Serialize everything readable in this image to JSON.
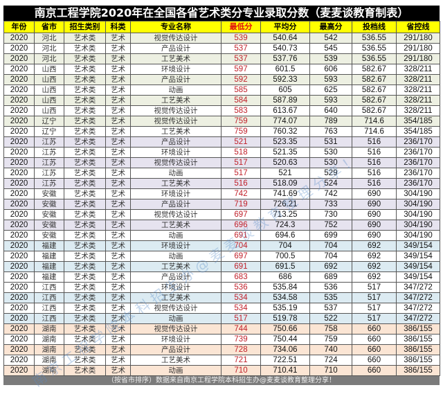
{
  "title": "南京工程学院2020年在全国各省艺术类分专业录取分数（麦麦谈教育制表）",
  "columns": [
    "年份",
    "省市",
    "招生类别",
    "科类",
    "专业名称",
    "最低分",
    "平均分",
    "最高分",
    "投档线",
    "省控线"
  ],
  "colors": {
    "title_bg": "#000000",
    "header_bg": "#ffff00",
    "min_score": "#c0202a",
    "footer_bg": "#7b7b7b"
  },
  "rows": [
    {
      "year": "2020",
      "province": "河北",
      "category": "艺术类",
      "subject": "艺术",
      "major": "视觉传达设计",
      "min": "539",
      "avg": "540.64",
      "max": "542",
      "cutoff": "536.55",
      "control": "291/180",
      "group": "hebei",
      "alt": true
    },
    {
      "year": "2020",
      "province": "河北",
      "category": "艺术类",
      "subject": "艺术",
      "major": "产品设计",
      "min": "537",
      "avg": "540.73",
      "max": "545",
      "cutoff": "536.55",
      "control": "291/180",
      "group": "hebei",
      "alt": false
    },
    {
      "year": "2020",
      "province": "河北",
      "category": "艺术类",
      "subject": "艺术",
      "major": "工艺美术",
      "min": "537",
      "avg": "537.76",
      "max": "539",
      "cutoff": "536.55",
      "control": "291/180",
      "group": "hebei",
      "alt": true
    },
    {
      "year": "2020",
      "province": "山西",
      "category": "艺术类",
      "subject": "艺术",
      "major": "环境设计",
      "min": "597",
      "avg": "601.5",
      "max": "606",
      "cutoff": "582.67",
      "control": "328/211",
      "group": "shanxi",
      "alt": false
    },
    {
      "year": "2020",
      "province": "山西",
      "category": "艺术类",
      "subject": "艺术",
      "major": "产品设计",
      "min": "592",
      "avg": "592.33",
      "max": "593",
      "cutoff": "582.67",
      "control": "328/211",
      "group": "shanxi",
      "alt": true
    },
    {
      "year": "2020",
      "province": "山西",
      "category": "艺术类",
      "subject": "艺术",
      "major": "动画",
      "min": "585",
      "avg": "605",
      "max": "625",
      "cutoff": "582.67",
      "control": "328/211",
      "group": "shanxi",
      "alt": false
    },
    {
      "year": "2020",
      "province": "山西",
      "category": "艺术类",
      "subject": "艺术",
      "major": "工艺美术",
      "min": "584",
      "avg": "587.89",
      "max": "593",
      "cutoff": "582.67",
      "control": "328/211",
      "group": "shanxi",
      "alt": true
    },
    {
      "year": "2020",
      "province": "山西",
      "category": "艺术类",
      "subject": "艺术",
      "major": "视觉传达设计",
      "min": "583",
      "avg": "613.67",
      "max": "640",
      "cutoff": "582.67",
      "control": "328/211",
      "group": "shanxi",
      "alt": false
    },
    {
      "year": "2020",
      "province": "辽宁",
      "category": "艺术类",
      "subject": "艺术",
      "major": "视觉传达设计",
      "min": "759",
      "avg": "774.07",
      "max": "789",
      "cutoff": "714.6",
      "control": "354/185",
      "group": "liaoning",
      "alt": true
    },
    {
      "year": "2020",
      "province": "辽宁",
      "category": "艺术类",
      "subject": "艺术",
      "major": "工艺美术",
      "min": "759",
      "avg": "760.32",
      "max": "763",
      "cutoff": "714.6",
      "control": "354/185",
      "group": "liaoning",
      "alt": false
    },
    {
      "year": "2020",
      "province": "江苏",
      "category": "艺术类",
      "subject": "艺术",
      "major": "产品设计",
      "min": "521",
      "avg": "523.35",
      "max": "531",
      "cutoff": "516",
      "control": "236/170",
      "group": "jiangsu",
      "alt": true
    },
    {
      "year": "2020",
      "province": "江苏",
      "category": "艺术类",
      "subject": "艺术",
      "major": "环境设计",
      "min": "518",
      "avg": "521.35",
      "max": "530",
      "cutoff": "516",
      "control": "236/170",
      "group": "jiangsu",
      "alt": false
    },
    {
      "year": "2020",
      "province": "江苏",
      "category": "艺术类",
      "subject": "艺术",
      "major": "视觉传达设计",
      "min": "517",
      "avg": "520.63",
      "max": "530",
      "cutoff": "516",
      "control": "236/170",
      "group": "jiangsu",
      "alt": true
    },
    {
      "year": "2020",
      "province": "江苏",
      "category": "艺术类",
      "subject": "艺术",
      "major": "动画",
      "min": "517",
      "avg": "521",
      "max": "529",
      "cutoff": "516",
      "control": "236/170",
      "group": "jiangsu",
      "alt": false
    },
    {
      "year": "2020",
      "province": "江苏",
      "category": "艺术类",
      "subject": "艺术",
      "major": "工艺美术",
      "min": "516",
      "avg": "518.09",
      "max": "524",
      "cutoff": "516",
      "control": "236/170",
      "group": "jiangsu",
      "alt": true
    },
    {
      "year": "2020",
      "province": "安徽",
      "category": "艺术类",
      "subject": "艺术",
      "major": "环境设计",
      "min": "742",
      "avg": "741.69",
      "max": "742",
      "cutoff": "690",
      "control": "304/190",
      "group": "anhui",
      "alt": false
    },
    {
      "year": "2020",
      "province": "安徽",
      "category": "艺术类",
      "subject": "艺术",
      "major": "产品设计",
      "min": "719",
      "avg": "726.21",
      "max": "733",
      "cutoff": "690",
      "control": "304/190",
      "group": "anhui",
      "alt": true
    },
    {
      "year": "2020",
      "province": "安徽",
      "category": "艺术类",
      "subject": "艺术",
      "major": "视觉传达设计",
      "min": "697",
      "avg": "713.25",
      "max": "730",
      "cutoff": "690",
      "control": "304/190",
      "group": "anhui",
      "alt": false
    },
    {
      "year": "2020",
      "province": "安徽",
      "category": "艺术类",
      "subject": "艺术",
      "major": "工艺美术",
      "min": "696",
      "avg": "724.3",
      "max": "752",
      "cutoff": "690",
      "control": "304/190",
      "group": "anhui",
      "alt": true
    },
    {
      "year": "2020",
      "province": "安徽",
      "category": "艺术类",
      "subject": "艺术",
      "major": "动画",
      "min": "691",
      "avg": "694.6",
      "max": "699",
      "cutoff": "690",
      "control": "304/190",
      "group": "anhui",
      "alt": false
    },
    {
      "year": "2020",
      "province": "福建",
      "category": "艺术类",
      "subject": "艺术",
      "major": "环境设计",
      "min": "704",
      "avg": "704",
      "max": "704",
      "cutoff": "692",
      "control": "349/154",
      "group": "fujian",
      "alt": true
    },
    {
      "year": "2020",
      "province": "福建",
      "category": "艺术类",
      "subject": "艺术",
      "major": "动画",
      "min": "697",
      "avg": "700.5",
      "max": "704",
      "cutoff": "692",
      "control": "349/154",
      "group": "fujian",
      "alt": false
    },
    {
      "year": "2020",
      "province": "福建",
      "category": "艺术类",
      "subject": "艺术",
      "major": "工艺美术",
      "min": "691",
      "avg": "691.5",
      "max": "692",
      "cutoff": "692",
      "control": "349/154",
      "group": "fujian",
      "alt": true
    },
    {
      "year": "2020",
      "province": "福建",
      "category": "艺术类",
      "subject": "艺术",
      "major": "产品设计",
      "min": "683",
      "avg": "686",
      "max": "689",
      "cutoff": "692",
      "control": "349/154",
      "group": "fujian",
      "alt": false
    },
    {
      "year": "2020",
      "province": "江西",
      "category": "艺术类",
      "subject": "艺术",
      "major": "环境设计",
      "min": "536",
      "avg": "535.84",
      "max": "536",
      "cutoff": "517",
      "control": "347/272",
      "group": "jiangxi",
      "alt": false
    },
    {
      "year": "2020",
      "province": "江西",
      "category": "艺术类",
      "subject": "艺术",
      "major": "工艺美术",
      "min": "534",
      "avg": "534.58",
      "max": "535",
      "cutoff": "517",
      "control": "347/272",
      "group": "jiangxi",
      "alt": true
    },
    {
      "year": "2020",
      "province": "江西",
      "category": "艺术类",
      "subject": "艺术",
      "major": "视觉传达设计",
      "min": "534",
      "avg": "535.19",
      "max": "537",
      "cutoff": "517",
      "control": "347/272",
      "group": "jiangxi",
      "alt": false
    },
    {
      "year": "2020",
      "province": "江西",
      "category": "艺术类",
      "subject": "艺术",
      "major": "动画",
      "min": "517",
      "avg": "519.78",
      "max": "522",
      "cutoff": "517",
      "control": "347/272",
      "group": "jiangxi",
      "alt": true
    },
    {
      "year": "2020",
      "province": "湖南",
      "category": "艺术类",
      "subject": "艺术",
      "major": "视觉传达设计",
      "min": "744",
      "avg": "750.66",
      "max": "758",
      "cutoff": "660",
      "control": "386/155",
      "group": "hunan",
      "alt": true
    },
    {
      "year": "2020",
      "province": "湖南",
      "category": "艺术类",
      "subject": "艺术",
      "major": "环境设计",
      "min": "739",
      "avg": "750.44",
      "max": "759",
      "cutoff": "660",
      "control": "386/155",
      "group": "hunan",
      "alt": false
    },
    {
      "year": "2020",
      "province": "湖南",
      "category": "艺术类",
      "subject": "艺术",
      "major": "产品设计",
      "min": "728",
      "avg": "734.06",
      "max": "740",
      "cutoff": "660",
      "control": "386/155",
      "group": "hunan",
      "alt": true
    },
    {
      "year": "2020",
      "province": "湖南",
      "category": "艺术类",
      "subject": "艺术",
      "major": "工艺美术",
      "min": "721",
      "avg": "722.51",
      "max": "724",
      "cutoff": "660",
      "control": "386/155",
      "group": "hunan",
      "alt": false
    },
    {
      "year": "2020",
      "province": "湖南",
      "category": "艺术类",
      "subject": "艺术",
      "major": "动画",
      "min": "710",
      "avg": "710.41",
      "max": "710",
      "cutoff": "660",
      "control": "386/155",
      "group": "hunan",
      "alt": true
    }
  ],
  "footer": "（按省市排序）数据来自南京工程学院本科招生办@麦麦谈教育整理分享！",
  "watermark": "南京工程学院本科招生办@麦麦谈教育整理分享！"
}
